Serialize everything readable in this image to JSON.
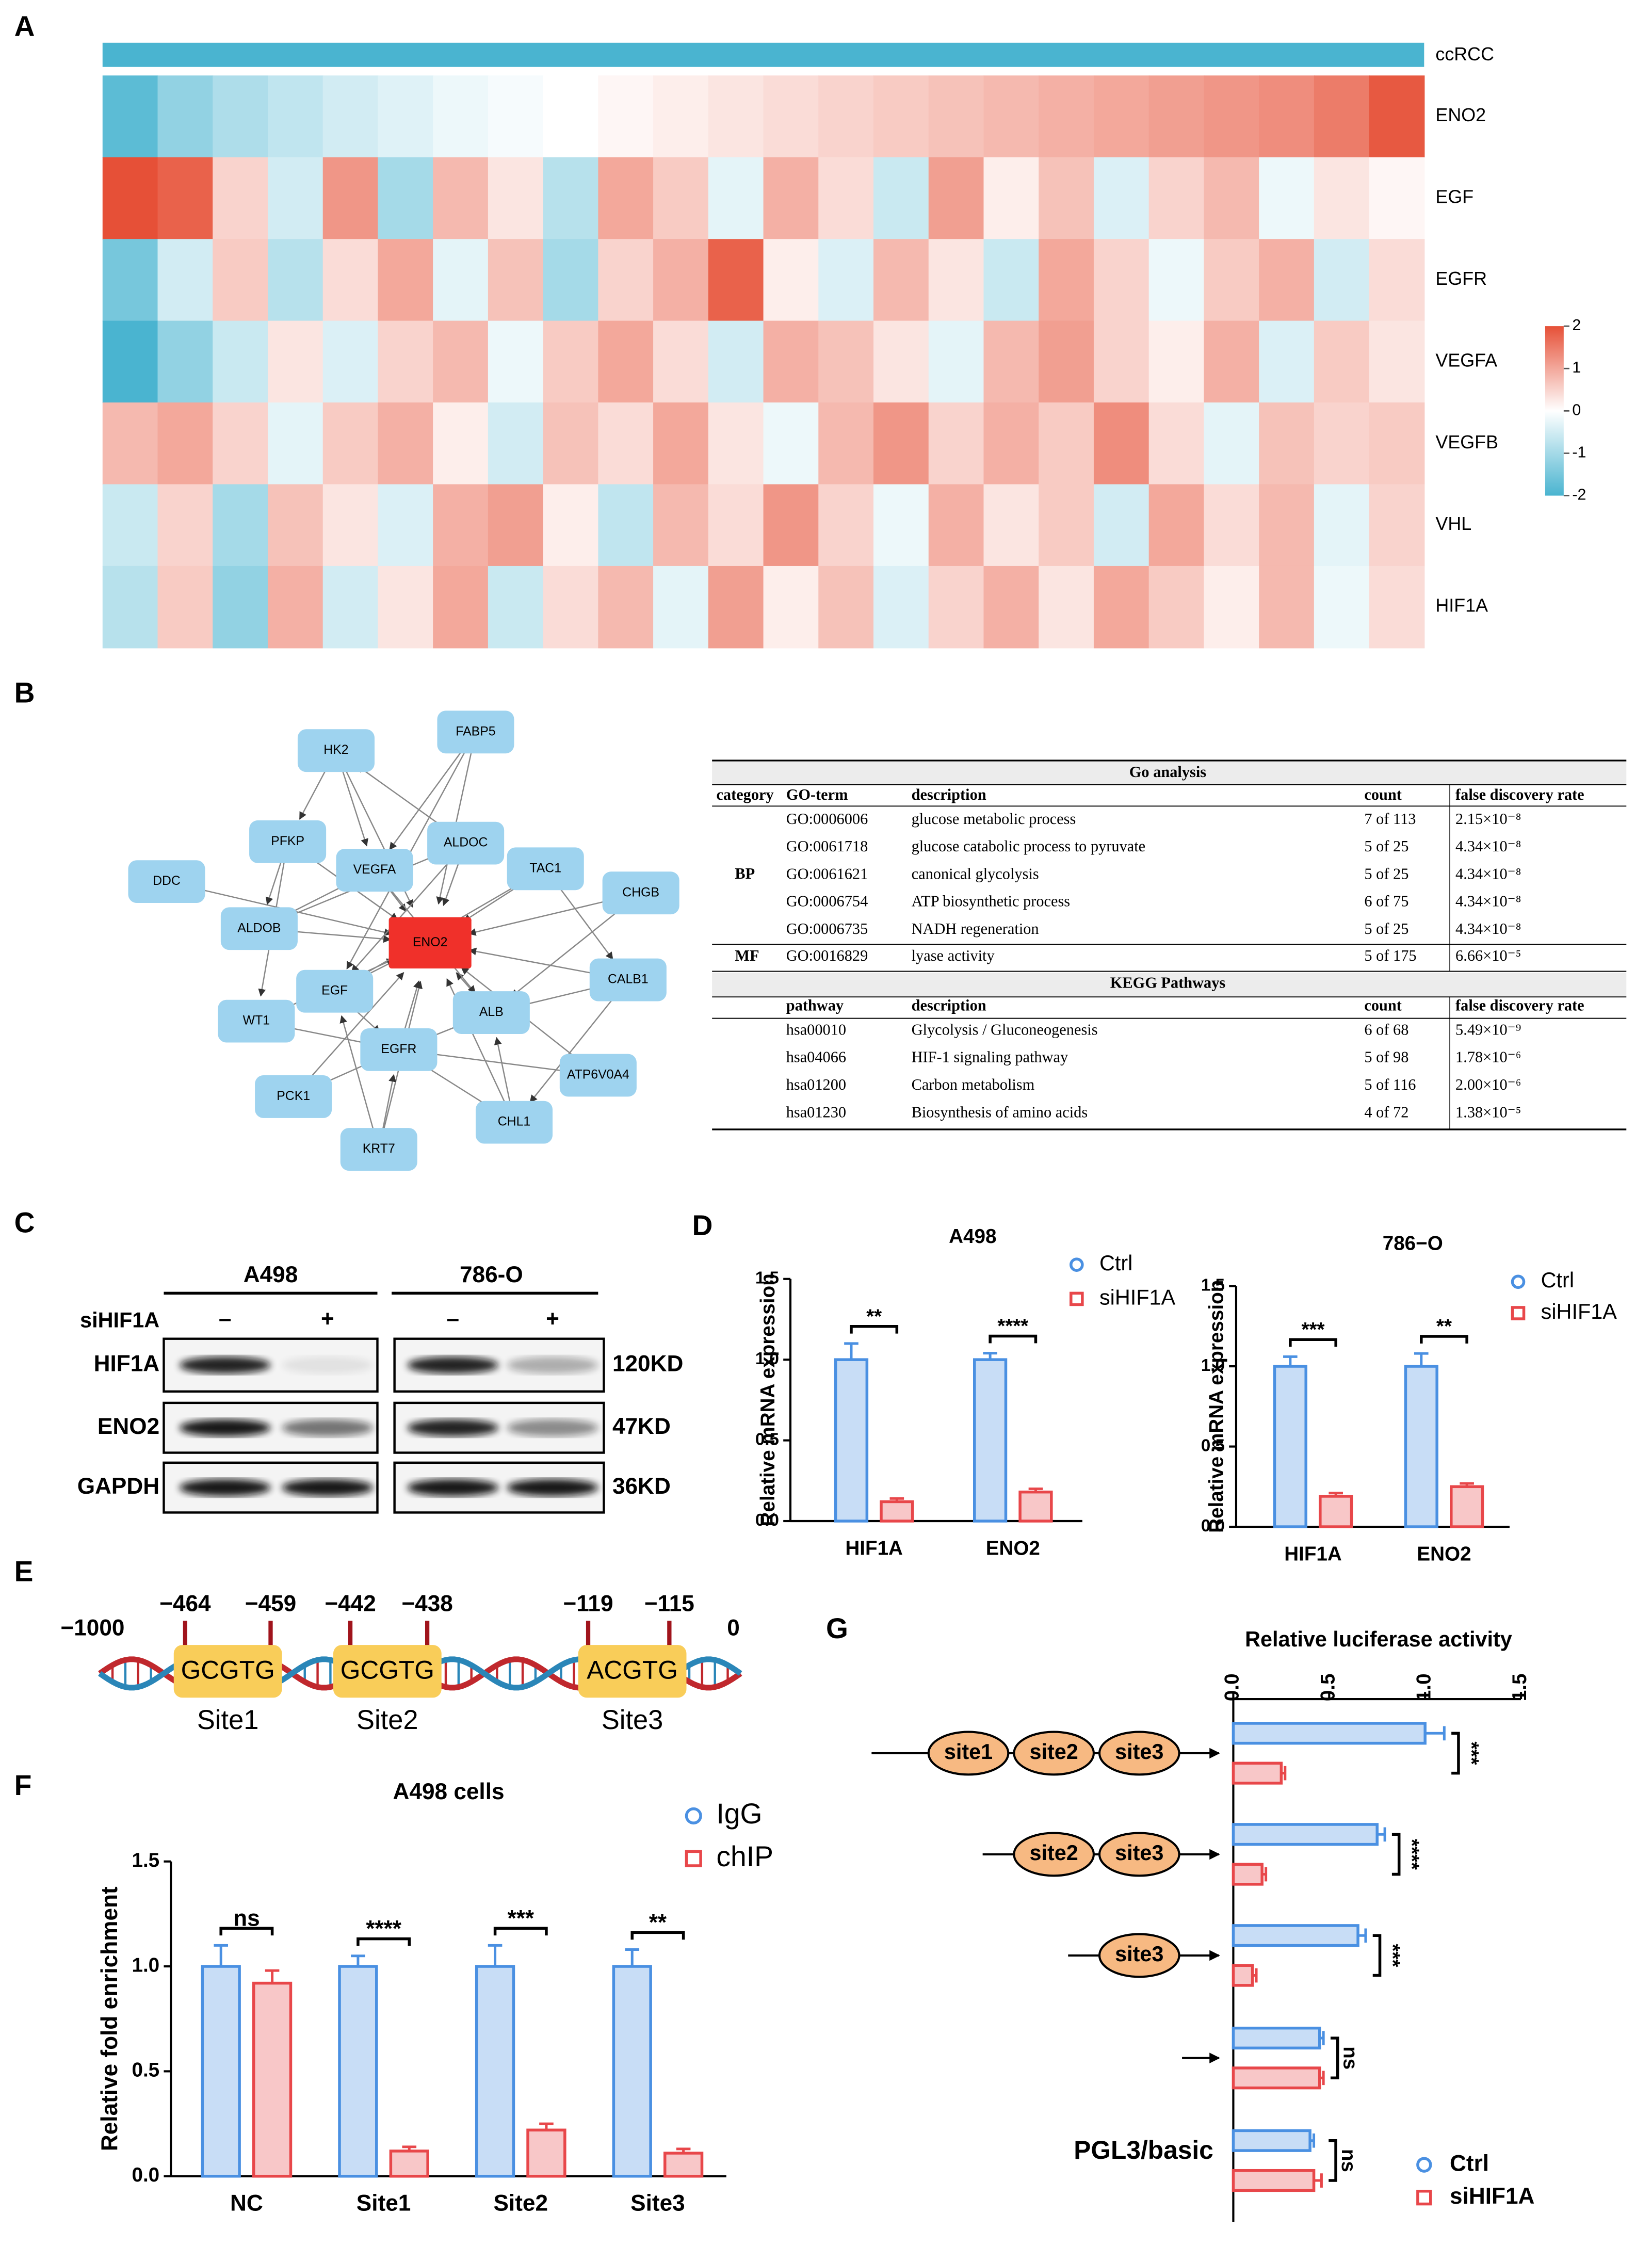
{
  "panel_labels": [
    "A",
    "B",
    "C",
    "D",
    "E",
    "F",
    "G"
  ],
  "heatmap": {
    "annotation": "ccRCC",
    "range": [
      -2,
      2
    ],
    "ticks": [
      2,
      1,
      0,
      -1,
      -2
    ],
    "rows": [
      {
        "name": "ENO2",
        "values": [
          -1.8,
          -1.2,
          -0.9,
          -0.7,
          -0.5,
          -0.35,
          -0.2,
          -0.1,
          0,
          0.1,
          0.2,
          0.3,
          0.4,
          0.5,
          0.6,
          0.7,
          0.8,
          0.9,
          1.0,
          1.1,
          1.2,
          1.3,
          1.5,
          1.9
        ]
      },
      {
        "name": "EGF",
        "values": [
          2,
          1.8,
          0.5,
          -0.5,
          1.2,
          -1,
          0.8,
          0.3,
          -0.8,
          1,
          0.6,
          -0.3,
          0.9,
          0.4,
          -0.6,
          1.1,
          0.2,
          0.7,
          -0.4,
          0.5,
          0.8,
          -0.2,
          0.3,
          0.1
        ]
      },
      {
        "name": "EGFR",
        "values": [
          -1.5,
          -0.5,
          0.6,
          -0.8,
          0.4,
          1,
          -0.3,
          0.7,
          -1,
          0.5,
          0.9,
          1.8,
          0.2,
          -0.4,
          0.8,
          0.3,
          -0.6,
          1,
          0.5,
          -0.2,
          0.6,
          0.9,
          -0.5,
          0.4
        ]
      },
      {
        "name": "VEGFA",
        "values": [
          -2,
          -1.2,
          -0.6,
          0.3,
          -0.4,
          0.5,
          0.8,
          -0.2,
          0.6,
          1,
          0.4,
          -0.5,
          0.9,
          0.7,
          0.3,
          -0.3,
          0.8,
          1.1,
          0.5,
          0.2,
          0.9,
          -0.4,
          0.6,
          0.3
        ]
      },
      {
        "name": "VEGFB",
        "values": [
          0.8,
          1,
          0.5,
          -0.3,
          0.6,
          0.9,
          0.2,
          -0.5,
          0.7,
          0.4,
          1,
          0.3,
          -0.2,
          0.8,
          1.2,
          0.5,
          0.9,
          0.6,
          1.3,
          0.4,
          -0.3,
          0.7,
          0.5,
          0.6
        ]
      },
      {
        "name": "VHL",
        "values": [
          -0.6,
          0.5,
          -1,
          0.7,
          0.3,
          -0.4,
          0.9,
          1.1,
          0.2,
          -0.7,
          0.8,
          0.4,
          1.2,
          0.5,
          -0.2,
          0.9,
          0.3,
          0.6,
          -0.5,
          1,
          0.4,
          0.8,
          -0.3,
          0.5
        ]
      },
      {
        "name": "HIF1A",
        "values": [
          -0.8,
          0.6,
          -1.2,
          0.9,
          -0.5,
          0.3,
          1,
          -0.6,
          0.4,
          0.8,
          -0.3,
          1.1,
          0.2,
          0.7,
          -0.4,
          0.5,
          0.9,
          0.3,
          1,
          0.6,
          0.2,
          0.8,
          -0.2,
          0.4
        ]
      }
    ]
  },
  "network": {
    "nodes": [
      "HK2",
      "FABP5",
      "PFKP",
      "ALDOC",
      "DDC",
      "VEGFA",
      "TAC1",
      "CHGB",
      "ALDOB",
      "ENO2",
      "CALB1",
      "EGF",
      "WT1",
      "ALB",
      "EGFR",
      "ATP6V0A4",
      "PCK1",
      "CHL1",
      "KRT7"
    ]
  },
  "table": {
    "go_title": "Go analysis",
    "go_header": [
      "category",
      "GO-term",
      "description",
      "count",
      "false discovery rate"
    ],
    "go_sections": [
      {
        "category": "BP",
        "rows": [
          [
            "GO:0006006",
            "glucose metabolic process",
            "7 of 113",
            "2.15×10⁻⁸"
          ],
          [
            "GO:0061718",
            "glucose catabolic process to pyruvate",
            "5 of 25",
            "4.34×10⁻⁸"
          ],
          [
            "GO:0061621",
            "canonical glycolysis",
            "5 of 25",
            "4.34×10⁻⁸"
          ],
          [
            "GO:0006754",
            "ATP biosynthetic process",
            "6 of 75",
            "4.34×10⁻⁸"
          ],
          [
            "GO:0006735",
            "NADH regeneration",
            "5 of 25",
            "4.34×10⁻⁸"
          ]
        ]
      },
      {
        "category": "MF",
        "rows": [
          [
            "GO:0016829",
            "lyase activity",
            "5 of 175",
            "6.66×10⁻⁵"
          ]
        ]
      }
    ],
    "kegg_title": "KEGG Pathways",
    "kegg_header": [
      "pathway",
      "description",
      "count",
      "false discovery rate"
    ],
    "kegg_rows": [
      [
        "hsa00010",
        "Glycolysis / Gluconeogenesis",
        "6 of 68",
        "5.49×10⁻⁹"
      ],
      [
        "hsa04066",
        "HIF-1 signaling pathway",
        "5 of 98",
        "1.78×10⁻⁶"
      ],
      [
        "hsa01200",
        "Carbon metabolism",
        "5 of 116",
        "2.00×10⁻⁶"
      ],
      [
        "hsa01230",
        "Biosynthesis of amino acids",
        "4 of 72",
        "1.38×10⁻⁵"
      ]
    ]
  },
  "blot": {
    "cell_lines": [
      "A498",
      "786-O"
    ],
    "treatment": "siHIF1A",
    "lanes": [
      "–",
      "+",
      "–",
      "+"
    ],
    "proteins": [
      {
        "name": "HIF1A",
        "size": "120KD"
      },
      {
        "name": "ENO2",
        "size": "47KD"
      },
      {
        "name": "GAPDH",
        "size": "36KD"
      }
    ]
  },
  "promoter": {
    "start": "−1000",
    "end": "0",
    "positions": [
      "−464",
      "−459",
      "−442",
      "−438",
      "−119",
      "−115"
    ],
    "sites": [
      {
        "seq": "GCGTG",
        "name": "Site1"
      },
      {
        "seq": "GCGTG",
        "name": "Site2"
      },
      {
        "seq": "ACGTG",
        "name": "Site3"
      }
    ]
  },
  "chart_data": [
    {
      "type": "bar",
      "title": "A498",
      "y_label": "Relative mRNA expression",
      "categories": [
        "HIF1A",
        "ENO2"
      ],
      "series": [
        {
          "name": "Ctrl",
          "color": "#4a90e2",
          "values": [
            1.0,
            1.0
          ],
          "errors": [
            0.1,
            0.04
          ]
        },
        {
          "name": "siHIF1A",
          "color": "#e8474a",
          "values": [
            0.12,
            0.18
          ],
          "errors": [
            0.02,
            0.02
          ]
        }
      ],
      "significance": [
        "**",
        "****"
      ],
      "ylim": [
        0,
        1.5
      ],
      "yticks": [
        {
          "value": 0,
          "label": "0.0"
        },
        0.5,
        {
          "value": 1,
          "label": "1.0"
        },
        1.5
      ]
    },
    {
      "type": "bar",
      "title": "786−O",
      "y_label": "Relative mRNA expression",
      "categories": [
        "HIF1A",
        "ENO2"
      ],
      "series": [
        {
          "name": "Ctrl",
          "color": "#4a90e2",
          "values": [
            1.0,
            1.0
          ],
          "errors": [
            0.06,
            0.08
          ]
        },
        {
          "name": "siHIF1A",
          "color": "#e8474a",
          "values": [
            0.19,
            0.25
          ],
          "errors": [
            0.02,
            0.02
          ]
        }
      ],
      "significance": [
        "***",
        "**"
      ],
      "ylim": [
        0,
        1.5
      ],
      "yticks": [
        {
          "value": 0,
          "label": "0.0"
        },
        0.5,
        {
          "value": 1,
          "label": "1.0"
        },
        1.5
      ]
    },
    {
      "type": "bar",
      "title": "A498 cells",
      "y_label": "Relative fold enrichment",
      "categories": [
        "NC",
        "Site1",
        "Site2",
        "Site3"
      ],
      "series": [
        {
          "name": "IgG",
          "color": "#4a90e2",
          "values": [
            1.0,
            1.0,
            1.0,
            1.0
          ],
          "errors": [
            0.1,
            0.05,
            0.1,
            0.08
          ]
        },
        {
          "name": "chIP",
          "color": "#e8474a",
          "values": [
            0.92,
            0.12,
            0.22,
            0.11
          ],
          "errors": [
            0.06,
            0.02,
            0.03,
            0.02
          ]
        }
      ],
      "significance": [
        "ns",
        "****",
        "***",
        "**"
      ],
      "ylim": [
        0,
        1.5
      ],
      "yticks": [
        {
          "value": 0,
          "label": "0.0"
        },
        0.5,
        {
          "value": 1,
          "label": "1.0"
        },
        1.5
      ]
    },
    {
      "type": "barh",
      "x_label": "Relative luciferase activity",
      "categories": [
        null,
        null,
        null,
        null,
        "PGL3/basic"
      ],
      "construct_sites": [
        [
          "site1",
          "site2",
          "site3"
        ],
        [
          "site2",
          "site3"
        ],
        [
          "site3"
        ],
        [],
        []
      ],
      "series": [
        {
          "name": "Ctrl",
          "color": "#4a90e2",
          "values": [
            1.0,
            0.75,
            0.65,
            0.45,
            0.4
          ],
          "errors": [
            0.1,
            0.04,
            0.04,
            0.02,
            0.02
          ]
        },
        {
          "name": "siHIF1A",
          "color": "#e8474a",
          "values": [
            0.25,
            0.15,
            0.1,
            0.45,
            0.42
          ],
          "errors": [
            0.02,
            0.02,
            0.02,
            0.02,
            0.04
          ]
        }
      ],
      "significance": [
        "***",
        "****",
        "***",
        "ns",
        "ns"
      ],
      "xlim": [
        0,
        1.5
      ],
      "xticks": [
        {
          "value": 0,
          "label": "0.0"
        },
        0.5,
        {
          "value": 1,
          "label": "1.0"
        },
        1.5
      ]
    }
  ]
}
